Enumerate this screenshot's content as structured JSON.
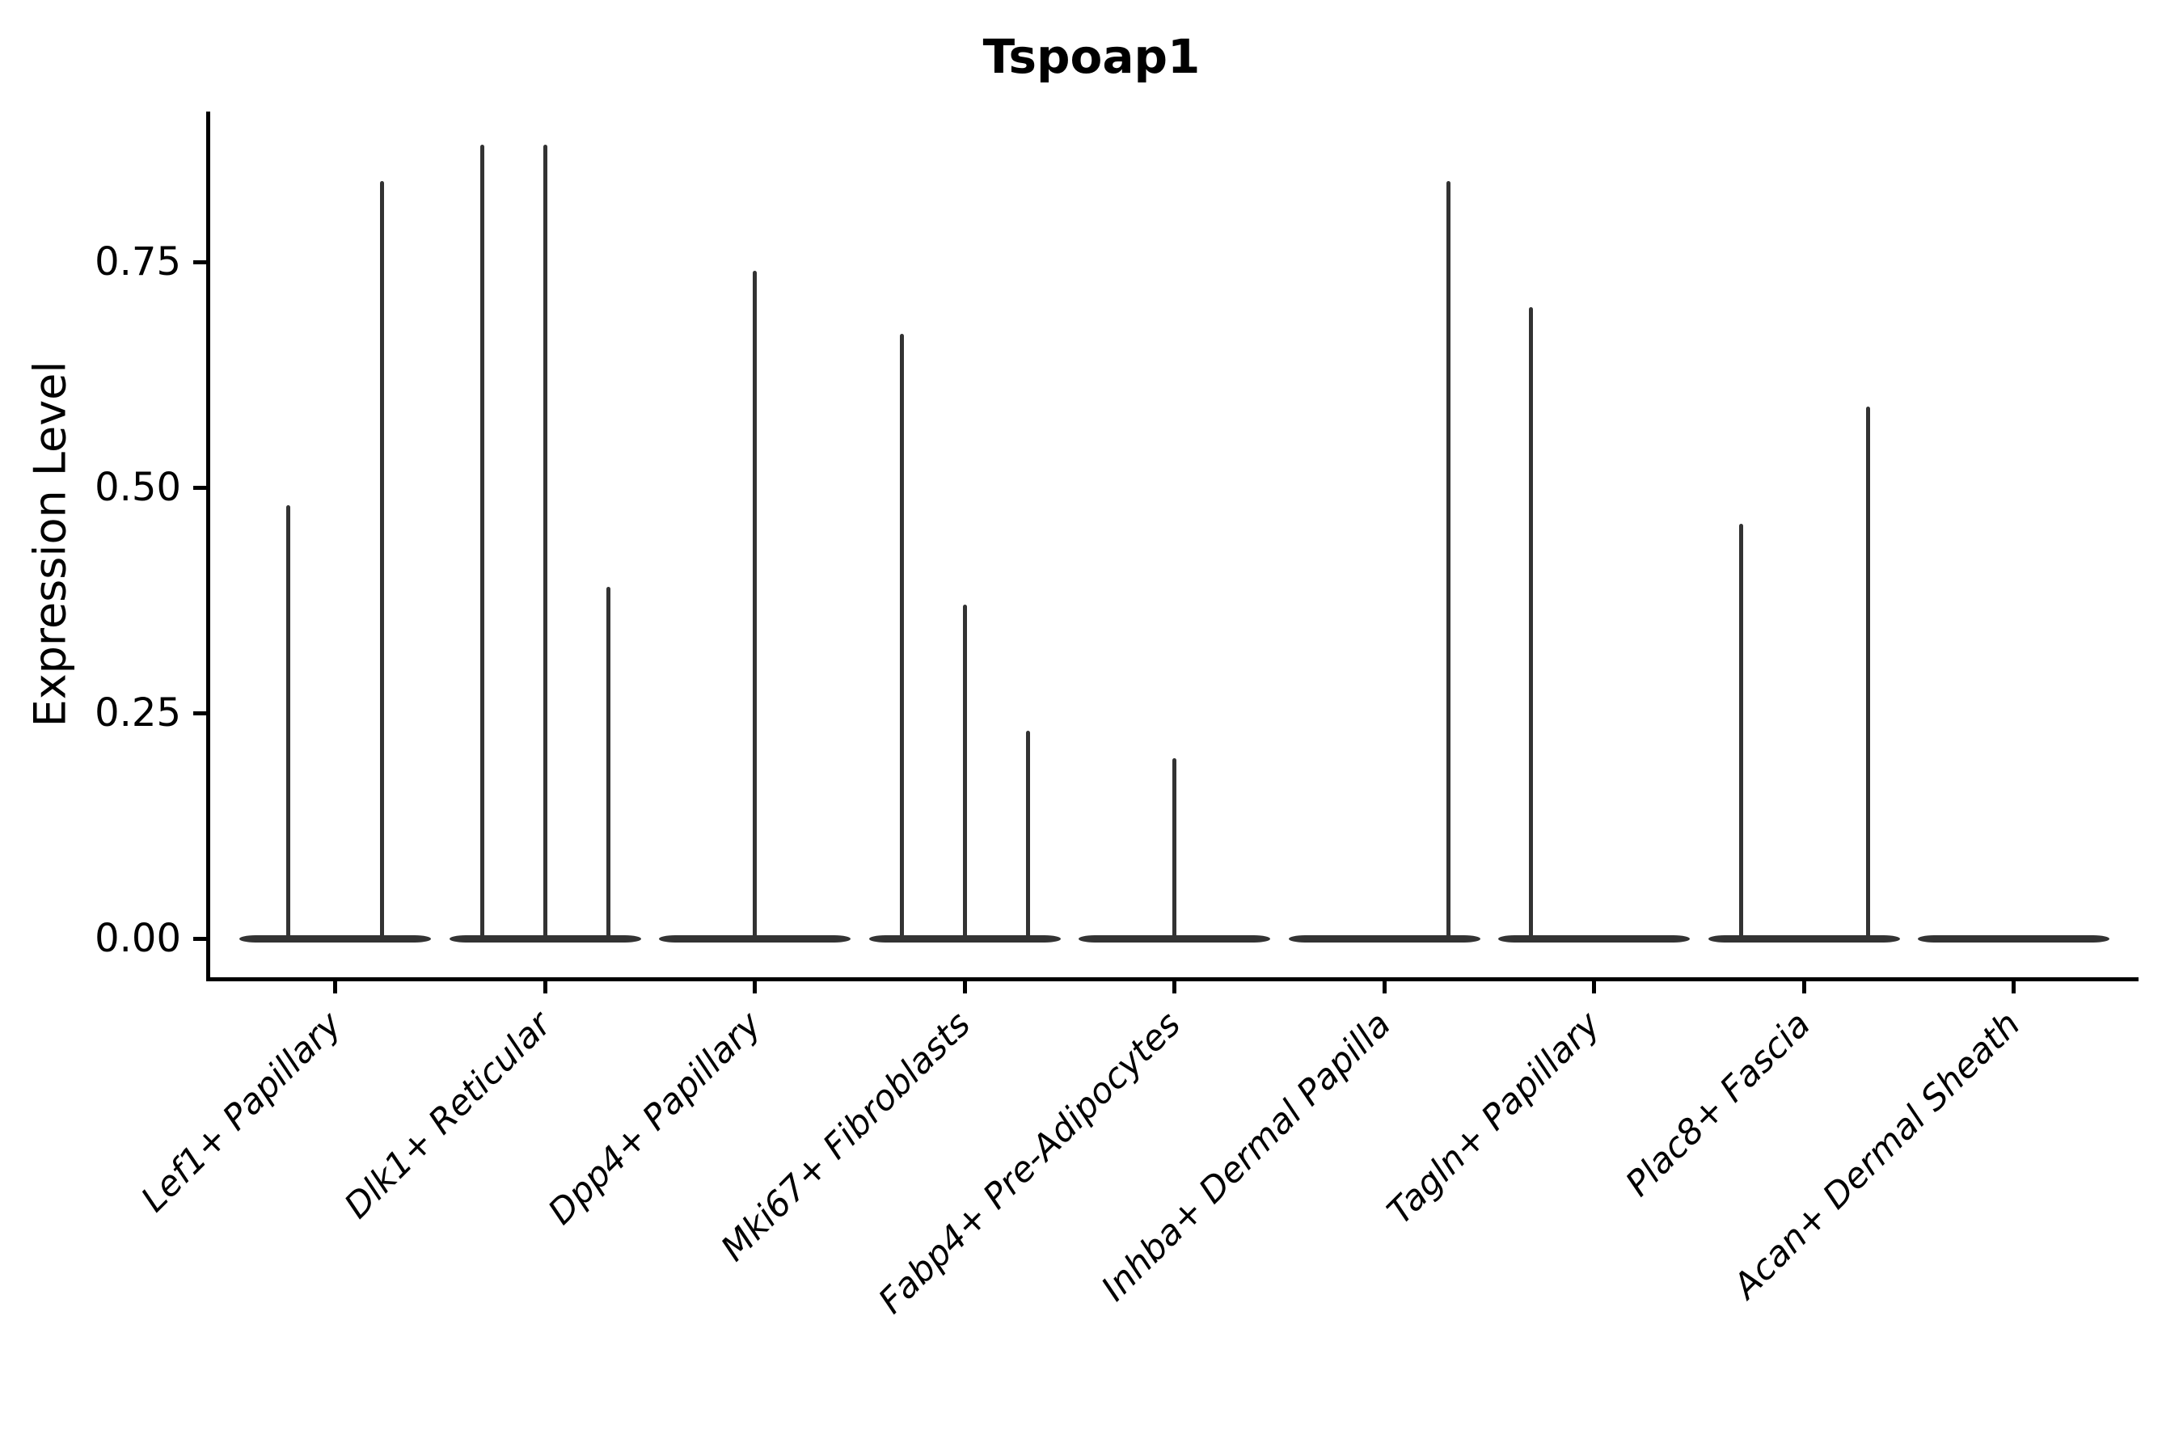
{
  "title": "Tspoap1",
  "y_axis": {
    "label": "Expression Level",
    "tick_labels": [
      "0.00",
      "0.25",
      "0.50",
      "0.75"
    ]
  },
  "style": {
    "violin_color": "#333333",
    "axis_color": "#000000",
    "background": "#ffffff"
  },
  "chart_data": {
    "type": "violin",
    "title": "Tspoap1",
    "xlabel": "",
    "ylabel": "Expression Level",
    "ylim": [
      0,
      0.92
    ],
    "yticks": [
      0,
      0.25,
      0.5,
      0.75
    ],
    "grid": false,
    "legend": "none",
    "description": "Single-cell expression violin plot; each violin collapses to a flat base at 0 with a thin spike to its maximum expression value. Some categories contain multiple dodged sub-violins.",
    "categories": [
      {
        "label": "Lef1+ Papillary",
        "violins": [
          {
            "offset": -58,
            "max": 0.48
          },
          {
            "offset": 58,
            "max": 0.84
          }
        ]
      },
      {
        "label": "Dlk1+ Reticular",
        "violins": [
          {
            "offset": -78,
            "max": 0.88
          },
          {
            "offset": 0,
            "max": 0.88
          },
          {
            "offset": 78,
            "max": 0.39
          }
        ]
      },
      {
        "label": "Dpp4+ Papillary",
        "violins": [
          {
            "offset": 0,
            "max": 0.74
          }
        ]
      },
      {
        "label": "Mki67+ Fibroblasts",
        "violins": [
          {
            "offset": -78,
            "max": 0.67
          },
          {
            "offset": 0,
            "max": 0.37
          },
          {
            "offset": 78,
            "max": 0.23
          }
        ]
      },
      {
        "label": "Fabp4+ Pre-Adipocytes",
        "violins": [
          {
            "offset": 0,
            "max": 0.2
          }
        ]
      },
      {
        "label": "Inhba+ Dermal Papilla",
        "violins": [
          {
            "offset": 79,
            "max": 0.84
          }
        ]
      },
      {
        "label": "Tagln+ Papillary",
        "violins": [
          {
            "offset": -78,
            "max": 0.7
          }
        ]
      },
      {
        "label": "Plac8+ Fascia",
        "violins": [
          {
            "offset": -78,
            "max": 0.46
          },
          {
            "offset": 79,
            "max": 0.59
          }
        ]
      },
      {
        "label": "Acan+ Dermal Sheath",
        "violins": []
      }
    ]
  }
}
